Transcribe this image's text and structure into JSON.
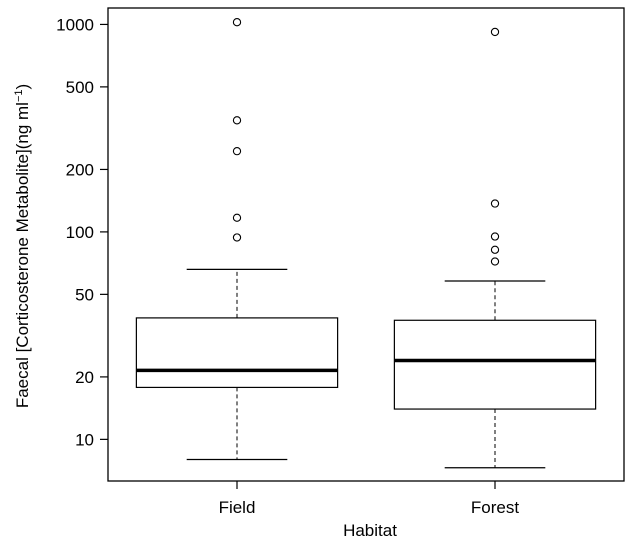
{
  "chart_data": {
    "type": "box",
    "xlabel": "Habitat",
    "ylabel": "Faecal [Corticosterone Metabolite](ng ml",
    "ylabel_superscript": "−1",
    "ylabel_suffix": ")",
    "yscale": "log",
    "ylim": [
      6.3,
      1200
    ],
    "yticks": [
      10,
      20,
      50,
      100,
      200,
      500,
      1000
    ],
    "ytick_labels": [
      "10",
      "20",
      "50",
      "100",
      "200",
      "500",
      "1000"
    ],
    "categories": [
      "Field",
      "Forest"
    ],
    "boxes": [
      {
        "category": "Field",
        "whisker_low": 8.0,
        "q1": 17.8,
        "median": 21.5,
        "q3": 38.5,
        "whisker_high": 66,
        "outliers": [
          94,
          117,
          245,
          345,
          1025
        ]
      },
      {
        "category": "Forest",
        "whisker_low": 7.3,
        "q1": 14.0,
        "median": 24.0,
        "q3": 37.5,
        "whisker_high": 58,
        "outliers": [
          72,
          82,
          95,
          137,
          920
        ]
      }
    ],
    "grid": false,
    "legend": "none"
  }
}
